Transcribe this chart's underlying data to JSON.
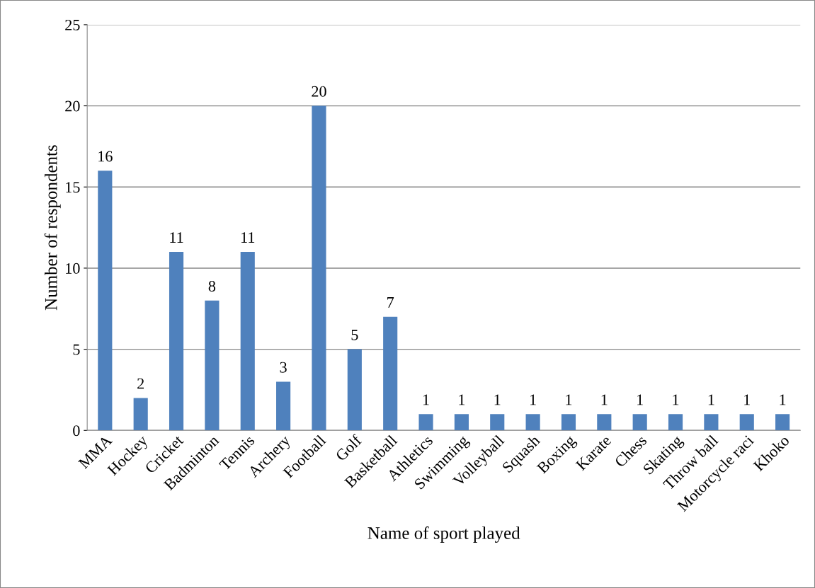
{
  "chart_data": {
    "type": "bar",
    "xlabel": "Name of sport played",
    "ylabel": "Number of respondents",
    "categories": [
      "MMA",
      "Hockey",
      "Cricket",
      "Badminton",
      "Tennis",
      "Archery",
      "Football",
      "Golf",
      "Basketball",
      "Athletics",
      "Swimming",
      "Volleyball",
      "Squash",
      "Boxing",
      "Karate",
      "Chess",
      "Skating",
      "Throw ball",
      "Motorcycle raci",
      "Khoko"
    ],
    "values": [
      16,
      2,
      11,
      8,
      11,
      3,
      20,
      5,
      7,
      1,
      1,
      1,
      1,
      1,
      1,
      1,
      1,
      1,
      1,
      1
    ],
    "color": "#4f81bd",
    "ylim": [
      0,
      25
    ],
    "yticks": [
      0,
      5,
      10,
      15,
      20,
      25
    ],
    "grid": "y",
    "data_labels": true
  }
}
